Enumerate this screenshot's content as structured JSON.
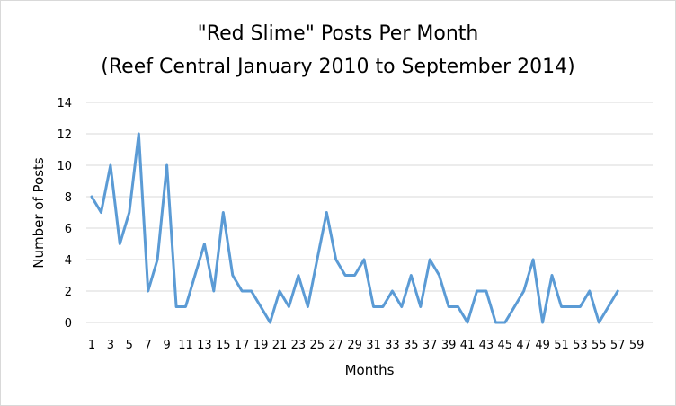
{
  "chart_data": {
    "type": "line",
    "title": "\"Red Slime\" Posts Per Month",
    "subtitle": "(Reef Central January 2010 to September 2014)",
    "xlabel": "Months",
    "ylabel": "Number of Posts",
    "ylim": [
      0,
      14
    ],
    "yticks": [
      "0",
      "2",
      "4",
      "6",
      "8",
      "10",
      "12",
      "14"
    ],
    "xticks": [
      "1",
      "3",
      "5",
      "7",
      "9",
      "11",
      "13",
      "15",
      "17",
      "19",
      "21",
      "23",
      "25",
      "27",
      "29",
      "31",
      "33",
      "35",
      "37",
      "39",
      "41",
      "43",
      "45",
      "47",
      "49",
      "51",
      "53",
      "55",
      "57",
      "59"
    ],
    "grid": true,
    "legend": "none",
    "line_color": "#5b9bd5",
    "series": [
      {
        "values": [
          8,
          7,
          10,
          5,
          7,
          12,
          2,
          4,
          10,
          1,
          1,
          3,
          5,
          2,
          7,
          3,
          2,
          2,
          1,
          0,
          2,
          1,
          3,
          1,
          4,
          7,
          4,
          3,
          3,
          4,
          1,
          1,
          2,
          1,
          3,
          1,
          4,
          3,
          1,
          1,
          0,
          2,
          2,
          0,
          0,
          1,
          2,
          4,
          0,
          3,
          1,
          1,
          1,
          2,
          0,
          1,
          2
        ]
      }
    ]
  }
}
